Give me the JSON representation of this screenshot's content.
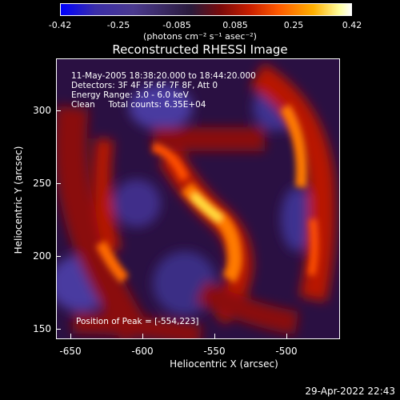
{
  "colorbar": {
    "ticks": [
      "-0.42",
      "-0.25",
      "-0.085",
      "0.085",
      "0.25",
      "0.42"
    ],
    "unit": "(photons cm⁻² s⁻¹ asec⁻²)"
  },
  "title": "Reconstructed RHESSI Image",
  "annotations": {
    "line1": "11-May-2005 18:38:20.000 to 18:44:20.000",
    "line2": "Detectors: 3F 4F 5F 6F 7F 8F, Att 0",
    "line3": "Energy Range: 3.0 - 6.0 keV",
    "line4": "Clean     Total counts: 6.35E+04",
    "peak": "Position of Peak = [-554,223]"
  },
  "axes": {
    "xlabel": "Heliocentric X (arcsec)",
    "ylabel": "Heliocentric Y (arcsec)",
    "xticks": [
      "-650",
      "-600",
      "-550",
      "-500"
    ],
    "yticks": [
      "300",
      "250",
      "200",
      "150"
    ]
  },
  "timestamp": "29-Apr-2022 22:43"
}
